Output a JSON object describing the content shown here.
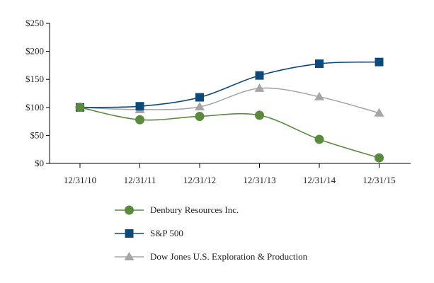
{
  "chart_data": {
    "type": "line",
    "title": "",
    "xlabel": "",
    "ylabel": "",
    "categories": [
      "12/31/10",
      "12/31/11",
      "12/31/12",
      "12/31/13",
      "12/31/14",
      "12/31/15"
    ],
    "y_ticks": [
      "$0",
      "$50",
      "$100",
      "$150",
      "$200",
      "$250"
    ],
    "ylim": [
      0,
      250
    ],
    "grid": false,
    "legend_position": "bottom",
    "series": [
      {
        "name": "Denbury Resources Inc.",
        "values": [
          100,
          78,
          84,
          86,
          43,
          10
        ],
        "color": "#5a8a3c",
        "marker": "circle"
      },
      {
        "name": "S&P 500",
        "values": [
          100,
          102,
          118,
          157,
          178,
          181
        ],
        "color": "#0d4a7c",
        "marker": "square"
      },
      {
        "name": "Dow Jones U.S. Exploration & Production",
        "values": [
          100,
          96,
          101,
          134,
          119,
          90
        ],
        "color": "#a6a6a6",
        "marker": "triangle"
      }
    ]
  }
}
